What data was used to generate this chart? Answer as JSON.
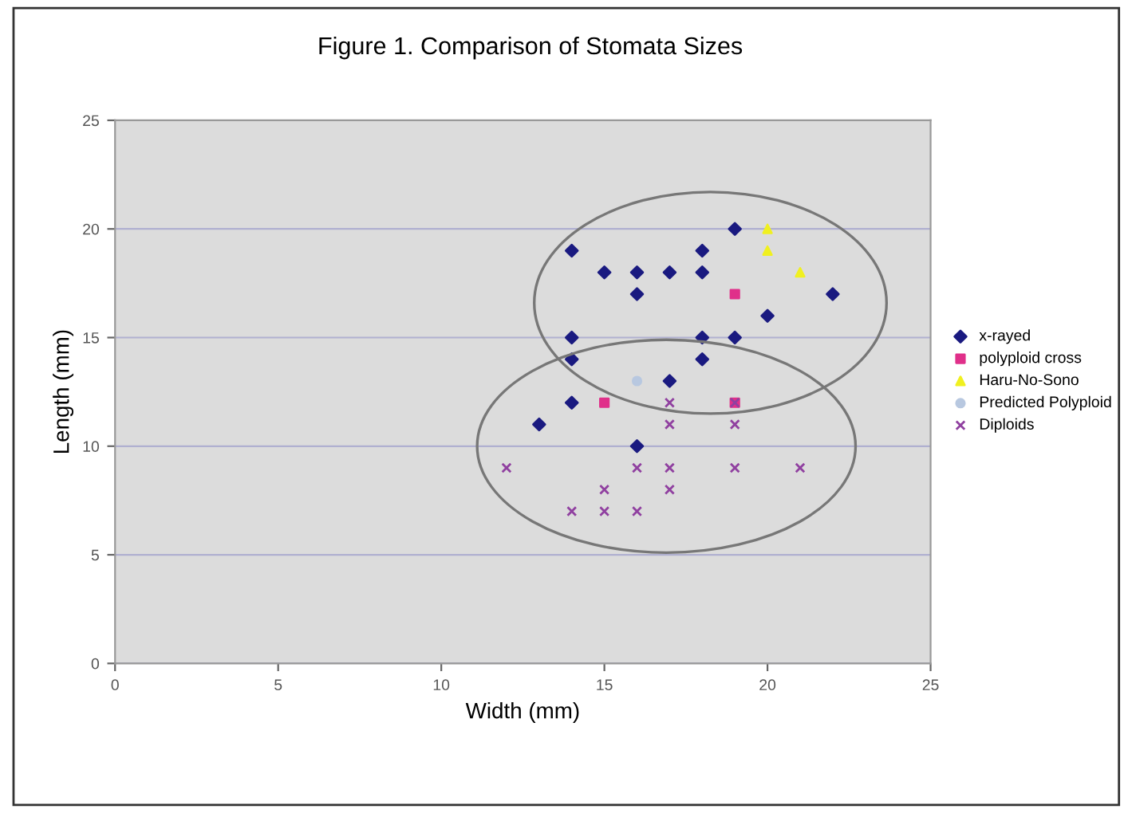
{
  "chart_data": {
    "type": "scatter",
    "title": "Figure 1. Comparison of Stomata Sizes",
    "xlabel": "Width (mm)",
    "ylabel": "Length (mm)",
    "xlim": [
      0,
      25
    ],
    "ylim": [
      0,
      25
    ],
    "xticks": [
      0,
      5,
      10,
      15,
      20,
      25
    ],
    "yticks": [
      0,
      5,
      10,
      15,
      20,
      25
    ],
    "grid": "y",
    "legend": "right",
    "series": [
      {
        "name": "x-rayed",
        "color": "#1a1a80",
        "marker": "diamond",
        "x": [
          14,
          15,
          16,
          17,
          18,
          18,
          19,
          16,
          22,
          20,
          14,
          18,
          19,
          14,
          18,
          17,
          14,
          13,
          16
        ],
        "values": [
          19,
          18,
          18,
          18,
          18,
          19,
          20,
          17,
          17,
          16,
          15,
          15,
          15,
          14,
          14,
          13,
          12,
          11,
          10
        ]
      },
      {
        "name": "polyploid cross",
        "color": "#e0308a",
        "marker": "square",
        "x": [
          15,
          19,
          19
        ],
        "values": [
          12,
          12,
          17
        ]
      },
      {
        "name": "Haru-No-Sono",
        "color": "#f0f020",
        "marker": "triangle",
        "x": [
          20,
          20,
          21
        ],
        "values": [
          20,
          19,
          18
        ]
      },
      {
        "name": "Predicted Polyploid",
        "color": "#b8c8e0",
        "marker": "circle",
        "x": [
          16
        ],
        "values": [
          13
        ]
      },
      {
        "name": "Diploids",
        "color": "#9040a0",
        "marker": "cross",
        "x": [
          17,
          19,
          17,
          19,
          12,
          16,
          17,
          19,
          21,
          15,
          17,
          14,
          15,
          16
        ],
        "values": [
          12,
          12,
          11,
          11,
          9,
          9,
          9,
          9,
          9,
          8,
          8,
          7,
          7,
          7
        ]
      }
    ]
  }
}
